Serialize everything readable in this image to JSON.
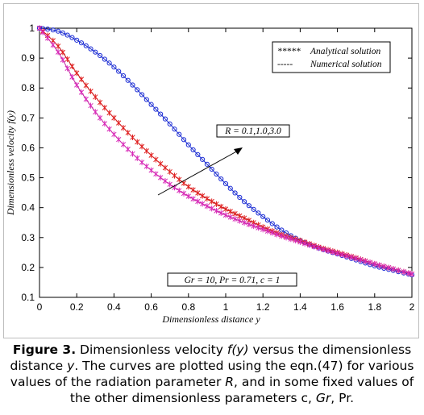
{
  "chart_data": {
    "type": "line",
    "xlabel": "Dimensionless distance  y",
    "ylabel": "Dimensionless velocity  f(y)",
    "xlim": [
      0,
      2
    ],
    "ylim": [
      0.1,
      1
    ],
    "xticks": [
      "0",
      "0.2",
      "0.4",
      "0.6",
      "0.8",
      "1",
      "1.2",
      "1.4",
      "1.6",
      "1.8",
      "2"
    ],
    "yticks": [
      "0.1",
      "0.2",
      "0.3",
      "0.4",
      "0.5",
      "0.6",
      "0.7",
      "0.8",
      "0.9",
      "1"
    ],
    "grid": false,
    "legend": {
      "position": "top-right",
      "analytical": {
        "marker": "*****",
        "label": "Analytical  solution"
      },
      "numerical": {
        "marker": "-----",
        "label": "Numerical  solution"
      }
    },
    "annotations": {
      "param_label": "R = 0.1,1.0,3.0",
      "fixed_params": "Gr = 10, Pr = 0.71, c = 1"
    },
    "series": [
      {
        "color": "#2233cc",
        "marker_color": "#1a2bd6",
        "marker": "o",
        "x": [
          0,
          0.1,
          0.2,
          0.3,
          0.4,
          0.5,
          0.6,
          0.7,
          0.8,
          0.9,
          1.0,
          1.1,
          1.2,
          1.3,
          1.4,
          1.5,
          1.6,
          1.7,
          1.8,
          1.9,
          2.0
        ],
        "y": [
          1.0,
          0.99,
          0.96,
          0.92,
          0.87,
          0.81,
          0.745,
          0.68,
          0.61,
          0.545,
          0.48,
          0.42,
          0.37,
          0.325,
          0.29,
          0.265,
          0.245,
          0.225,
          0.205,
          0.19,
          0.175
        ]
      },
      {
        "color": "#c01818",
        "marker_color": "#e02020",
        "marker": "x",
        "x": [
          0,
          0.1,
          0.2,
          0.3,
          0.4,
          0.5,
          0.6,
          0.7,
          0.8,
          0.9,
          1.0,
          1.1,
          1.2,
          1.3,
          1.4,
          1.5,
          1.6,
          1.7,
          1.8,
          1.9,
          2.0
        ],
        "y": [
          1.0,
          0.94,
          0.85,
          0.77,
          0.7,
          0.635,
          0.575,
          0.52,
          0.47,
          0.43,
          0.395,
          0.365,
          0.335,
          0.31,
          0.29,
          0.268,
          0.25,
          0.232,
          0.212,
          0.195,
          0.178
        ]
      },
      {
        "color": "#c0209e",
        "marker_color": "#d82ab8",
        "marker": "x",
        "x": [
          0,
          0.1,
          0.2,
          0.3,
          0.4,
          0.5,
          0.6,
          0.7,
          0.8,
          0.9,
          1.0,
          1.1,
          1.2,
          1.3,
          1.4,
          1.5,
          1.6,
          1.7,
          1.8,
          1.9,
          2.0
        ],
        "y": [
          1.0,
          0.92,
          0.81,
          0.72,
          0.645,
          0.58,
          0.525,
          0.478,
          0.438,
          0.405,
          0.375,
          0.35,
          0.327,
          0.305,
          0.285,
          0.265,
          0.247,
          0.23,
          0.212,
          0.195,
          0.178
        ]
      }
    ]
  },
  "caption": {
    "label": "Figure 3.",
    "part1": " Dimensionless velocity ",
    "fy": "f(y)",
    "part2": " versus the dimensionless distance ",
    "y": "y",
    "part3": ". The curves are plotted using the eqn.(47) for various values of the radiation parameter ",
    "R": "R",
    "part4": ", and in some fixed values of the other dimensionless parameters c, ",
    "Gr": "Gr",
    "part5": ", Pr."
  }
}
